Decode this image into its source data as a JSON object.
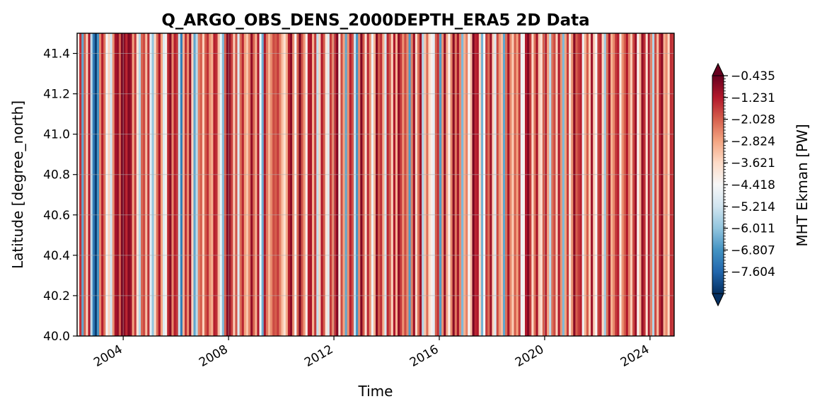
{
  "chart_data": {
    "type": "heatmap",
    "title": "Q_ARGO_OBS_DENS_2000DEPTH_ERA5 2D Data",
    "xlabel": "Time",
    "ylabel": "Latitude [degree_north]",
    "xlim": [
      "2002-04",
      "2024-12"
    ],
    "ylim": [
      40.0,
      41.5
    ],
    "x_ticks": [
      "2004",
      "2008",
      "2012",
      "2016",
      "2020",
      "2024"
    ],
    "y_ticks": [
      "40.0",
      "40.2",
      "40.4",
      "40.6",
      "40.8",
      "41.0",
      "41.2",
      "41.4"
    ],
    "grid": true,
    "colormap": "RdBu_r",
    "colorbar": {
      "label": "MHT Ekman [PW]",
      "vmin": -8.4,
      "vmax": -0.435,
      "extend": "both",
      "tick_labels": [
        "−0.435",
        "−1.231",
        "−2.028",
        "−2.824",
        "−3.621",
        "−4.418",
        "−5.214",
        "−6.011",
        "−6.807",
        "−7.604"
      ]
    },
    "values": [
      -4.2,
      -1.5,
      -6.5,
      -2.0,
      -3.5,
      -1.2,
      -5.5,
      -7.2,
      -8.2,
      -6.8,
      -2.5,
      -1.3,
      -2.3,
      -4.5,
      -3.5,
      -5.2,
      -2.6,
      -1.1,
      -0.9,
      -2.0,
      -0.6,
      -0.8,
      -1.4,
      -0.7,
      -1.0,
      -2.8,
      -1.6,
      -3.8,
      -5.6,
      -2.1,
      -1.8,
      -3.2,
      -1.5,
      -4.8,
      -6.0,
      -3.6,
      -2.2,
      -1.2,
      -2.8,
      -5.0,
      -4.2,
      -1.4,
      -0.8,
      -2.5,
      -1.3,
      -1.6,
      -5.3,
      -7.2,
      -3.0,
      -1.5,
      -2.6,
      -0.9,
      -3.5,
      -6.5,
      -5.5,
      -2.4,
      -2.0,
      -3.5,
      -2.0,
      -1.5,
      -2.6,
      -3.0,
      -1.3,
      -1.5,
      -3.2,
      -4.6,
      -6.2,
      -2.0,
      -0.7,
      -0.9,
      -1.7,
      -3.4,
      -1.9,
      -5.0,
      -2.2,
      -1.4,
      -2.8,
      -3.3,
      -2.4,
      -0.9,
      -2.1,
      -3.0,
      -1.2,
      -4.5,
      -6.4,
      -1.2,
      -2.3,
      -3.1,
      -2.5,
      -1.8,
      -2.0,
      -1.6,
      -2.4,
      -3.2,
      -3.8,
      -2.9,
      -1.3,
      -0.8,
      -2.6,
      -4.4,
      -2.1,
      -0.6,
      -1.9,
      -2.7,
      -4.2,
      -1.3,
      -1.1,
      -3.0,
      -1.6,
      -5.4,
      -3.4,
      -1.2,
      -2.0,
      -3.9,
      -5.0,
      -1.6,
      -2.5,
      -1.5,
      -0.7,
      -4.0,
      -1.8,
      -2.8,
      -6.5,
      -2.6,
      -1.3,
      -1.9,
      -5.3,
      -6.8,
      -2.5,
      -0.7,
      -2.0,
      -3.8,
      -1.4,
      -2.6,
      -4.6,
      -3.0,
      -0.8,
      -2.0,
      -1.5,
      -3.0,
      -5.1,
      -1.4,
      -2.0,
      -3.5,
      -1.2,
      -3.0,
      -0.9,
      -1.6,
      -2.6,
      -1.8,
      -2.5,
      -6.7,
      -2.4,
      -1.0,
      -3.7,
      -2.2,
      -1.0,
      -5.6,
      -3.3,
      -2.2,
      -3.6,
      -4.2,
      -4.8,
      -2.0,
      -1.5,
      -6.7,
      -2.6,
      -0.9,
      -2.9,
      -4.2,
      -2.5,
      -0.8,
      -2.3,
      -1.1,
      -2.5,
      -6.2,
      -3.0,
      -2.4,
      -4.4,
      -3.2,
      -0.6,
      -1.4,
      -1.2,
      -3.5,
      -6.3,
      -4.4,
      -1.6,
      -2.2,
      -1.0,
      -3.5,
      -5.0,
      -1.8,
      -2.7,
      -3.2,
      -6.5,
      -2.2,
      -1.1,
      -2.5,
      -3.4,
      -2.0,
      -2.8,
      -1.6,
      -4.7,
      -4.2,
      -1.2,
      -0.7,
      -1.6,
      -3.6,
      -2.2,
      -1.1,
      -3.3,
      -3.8,
      -2.0,
      -1.3,
      -2.8,
      -5.5,
      -2.2,
      -1.8,
      -3.5,
      -1.2,
      -2.6,
      -6.2,
      -2.8,
      -1.6,
      -4.0,
      -2.6,
      -0.8,
      -2.0,
      -1.6,
      -1.3,
      -4.6,
      -3.0,
      -2.0,
      -3.4,
      -1.0,
      -3.4,
      -4.4,
      -1.7,
      -1.4,
      -3.6,
      -5.8,
      -2.2,
      -1.1,
      -3.0,
      -2.5,
      -1.6,
      -1.3,
      -4.0,
      -2.6,
      -2.0,
      -1.2,
      -2.4,
      -3.4,
      -1.8,
      -1.0,
      -4.3,
      -3.0,
      -0.9,
      -1.5,
      -3.8,
      -1.2,
      -2.4,
      -5.6,
      -1.8,
      -3.2,
      -1.4,
      -0.8,
      -3.0,
      -2.5,
      -3.6,
      -1.5,
      -1.6
    ]
  }
}
